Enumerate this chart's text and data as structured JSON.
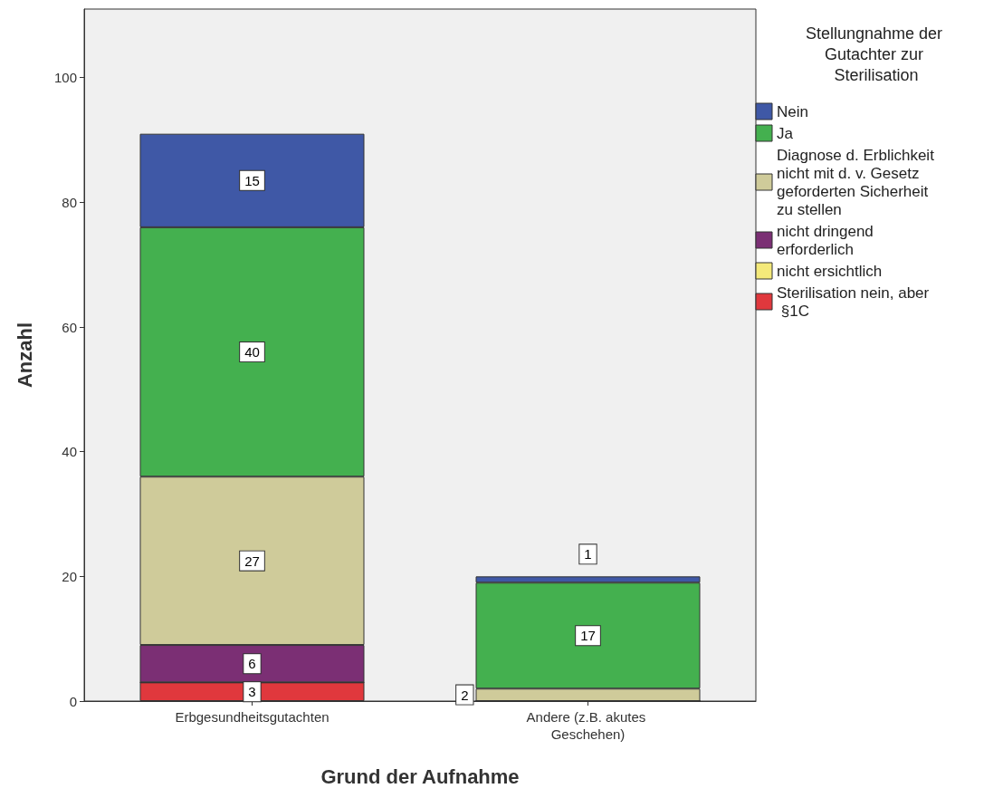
{
  "chart_data": {
    "type": "bar",
    "stacked": true,
    "xlabel": "Grund der Aufnahme",
    "ylabel": "Anzahl",
    "legend_title": "Stellungnahme der Gutachter zur Sterilisation",
    "categories": [
      "Erbgesundheitsgutachten",
      "Andere (z.B. akutes Geschehen)"
    ],
    "series": [
      {
        "name": "Sterilisation nein, aber §1C",
        "color": "#e0383d",
        "values": [
          3,
          0
        ],
        "value_labels": [
          "3",
          null
        ]
      },
      {
        "name": "nicht ersichtlich",
        "color": "#f4e97a",
        "values": [
          0,
          0
        ],
        "value_labels": [
          null,
          null
        ]
      },
      {
        "name": "nicht dringend erforderlich",
        "color": "#7b2f74",
        "values": [
          6,
          0
        ],
        "value_labels": [
          "6",
          null
        ]
      },
      {
        "name": "Diagnose d. Erblichkeit nicht mit d. v. Gesetz geforderten Sicherheit zu stellen",
        "color": "#cfcb9a",
        "values": [
          27,
          2
        ],
        "value_labels": [
          "27",
          "2"
        ]
      },
      {
        "name": "Ja",
        "color": "#44b04f",
        "values": [
          40,
          17
        ],
        "value_labels": [
          "40",
          "17"
        ]
      },
      {
        "name": "Nein",
        "color": "#3f58a6",
        "values": [
          15,
          1
        ],
        "value_labels": [
          "15",
          "1"
        ]
      }
    ],
    "ylim": [
      0,
      111
    ],
    "yticks": [
      0,
      20,
      40,
      60,
      80,
      100
    ],
    "grid": false,
    "legend": "right"
  }
}
